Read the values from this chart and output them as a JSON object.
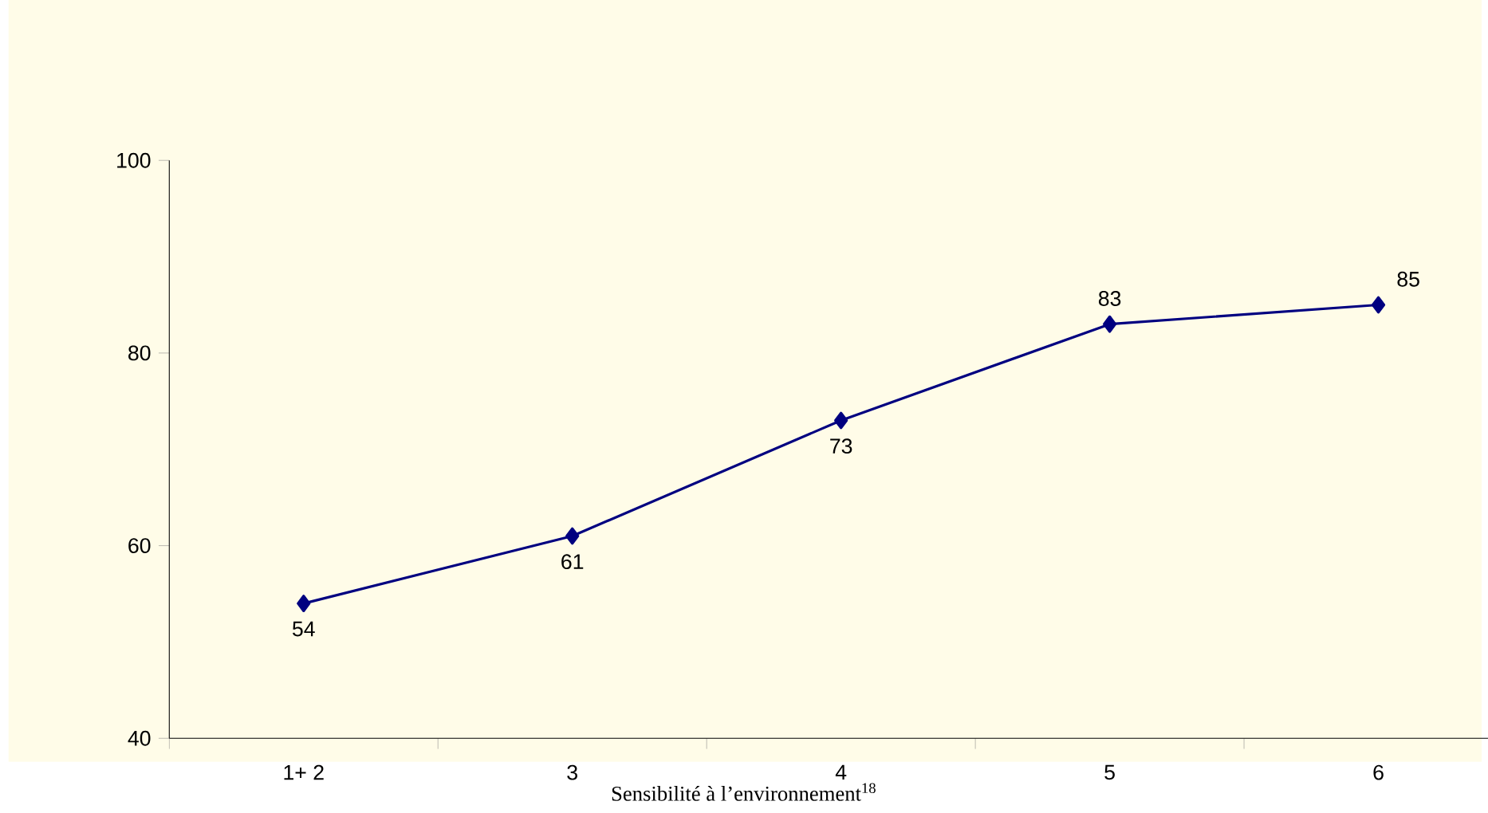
{
  "chart_data": {
    "type": "line",
    "xlabel": "Sensibilité à l’environnement$^{18}$",
    "categories": [
      "1+ 2",
      "3",
      "4",
      "5",
      "6"
    ],
    "series": [
      {
        "color": "#000080",
        "values": [
          54,
          61,
          73,
          83,
          85
        ]
      }
    ],
    "ylim": [
      40,
      100
    ],
    "yticks": [
      40,
      60,
      80,
      100
    ],
    "marker": "diamond",
    "line_style": "solid",
    "data_labels": true
  }
}
